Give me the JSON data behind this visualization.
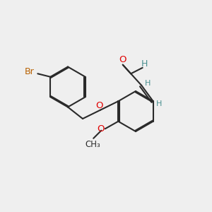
{
  "bg_color": "#efefef",
  "bond_color": "#2a2a2a",
  "O_color": "#e00000",
  "Br_color": "#b86000",
  "H_color": "#4a9090",
  "lw": 1.5,
  "doff": 0.045,
  "xlim": [
    0,
    10
  ],
  "ylim": [
    0,
    10
  ]
}
